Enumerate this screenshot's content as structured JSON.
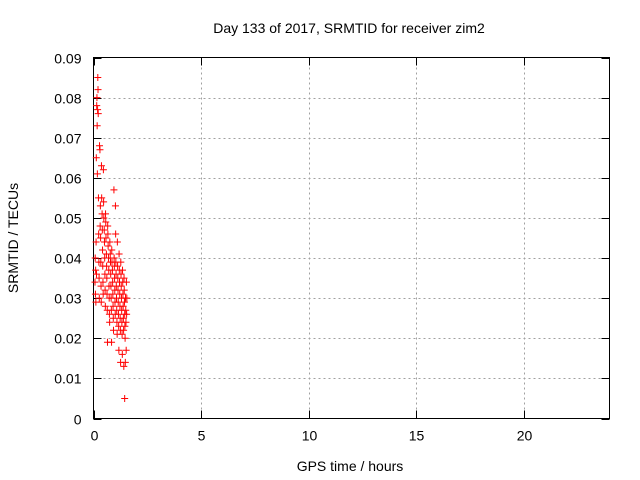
{
  "chart_data": {
    "type": "scatter",
    "title": "Day 133 of 2017, SRMTID for receiver zim2",
    "xlabel": "GPS time / hours",
    "ylabel": "SRMTID / TECUs",
    "xlim": [
      0,
      24
    ],
    "ylim": [
      0,
      0.09
    ],
    "xticks": [
      0,
      5,
      10,
      15,
      20
    ],
    "yticks": [
      0,
      0.01,
      0.02,
      0.03,
      0.04,
      0.05,
      0.06,
      0.07,
      0.08,
      0.09
    ],
    "ytick_labels": [
      "0",
      "0.01",
      "0.02",
      "0.03",
      "0.04",
      "0.05",
      "0.06",
      "0.07",
      "0.08",
      "0.09"
    ],
    "grid": true,
    "marker": "+",
    "color": "#ff0000",
    "series": [
      {
        "values": [
          [
            0.07,
            0.034
          ],
          [
            0.08,
            0.04
          ],
          [
            0.09,
            0.031
          ],
          [
            0.1,
            0.037
          ],
          [
            0.11,
            0.029
          ],
          [
            0.12,
            0.044
          ],
          [
            0.13,
            0.065
          ],
          [
            0.14,
            0.036
          ],
          [
            0.15,
            0.078
          ],
          [
            0.16,
            0.08
          ],
          [
            0.17,
            0.073
          ],
          [
            0.18,
            0.061
          ],
          [
            0.19,
            0.077
          ],
          [
            0.2,
            0.085
          ],
          [
            0.21,
            0.082
          ],
          [
            0.22,
            0.076
          ],
          [
            0.23,
            0.055
          ],
          [
            0.24,
            0.046
          ],
          [
            0.25,
            0.039
          ],
          [
            0.26,
            0.035
          ],
          [
            0.27,
            0.03
          ],
          [
            0.28,
            0.068
          ],
          [
            0.3,
            0.067
          ],
          [
            0.31,
            0.048
          ],
          [
            0.32,
            0.053
          ],
          [
            0.33,
            0.045
          ],
          [
            0.34,
            0.039
          ],
          [
            0.35,
            0.033
          ],
          [
            0.36,
            0.029
          ],
          [
            0.37,
            0.063
          ],
          [
            0.38,
            0.055
          ],
          [
            0.4,
            0.051
          ],
          [
            0.41,
            0.047
          ],
          [
            0.42,
            0.042
          ],
          [
            0.43,
            0.038
          ],
          [
            0.44,
            0.034
          ],
          [
            0.45,
            0.031
          ],
          [
            0.46,
            0.062
          ],
          [
            0.47,
            0.054
          ],
          [
            0.48,
            0.05
          ],
          [
            0.5,
            0.047
          ],
          [
            0.51,
            0.044
          ],
          [
            0.52,
            0.04
          ],
          [
            0.53,
            0.036
          ],
          [
            0.54,
            0.032
          ],
          [
            0.55,
            0.028
          ],
          [
            0.56,
            0.051
          ],
          [
            0.57,
            0.049
          ],
          [
            0.58,
            0.045
          ],
          [
            0.6,
            0.041
          ],
          [
            0.61,
            0.038
          ],
          [
            0.62,
            0.035
          ],
          [
            0.63,
            0.031
          ],
          [
            0.64,
            0.027
          ],
          [
            0.65,
            0.019
          ],
          [
            0.66,
            0.048
          ],
          [
            0.67,
            0.046
          ],
          [
            0.68,
            0.043
          ],
          [
            0.7,
            0.04
          ],
          [
            0.71,
            0.037
          ],
          [
            0.72,
            0.033
          ],
          [
            0.73,
            0.03
          ],
          [
            0.74,
            0.026
          ],
          [
            0.75,
            0.024
          ],
          [
            0.76,
            0.044
          ],
          [
            0.78,
            0.041
          ],
          [
            0.79,
            0.039
          ],
          [
            0.8,
            0.036
          ],
          [
            0.81,
            0.033
          ],
          [
            0.82,
            0.03
          ],
          [
            0.83,
            0.027
          ],
          [
            0.84,
            0.019
          ],
          [
            0.85,
            0.042
          ],
          [
            0.86,
            0.039
          ],
          [
            0.88,
            0.037
          ],
          [
            0.89,
            0.034
          ],
          [
            0.9,
            0.031
          ],
          [
            0.91,
            0.028
          ],
          [
            0.92,
            0.025
          ],
          [
            0.93,
            0.022
          ],
          [
            0.95,
            0.057
          ],
          [
            0.96,
            0.04
          ],
          [
            0.97,
            0.038
          ],
          [
            0.98,
            0.035
          ],
          [
            0.99,
            0.032
          ],
          [
            1.0,
            0.029
          ],
          [
            1.01,
            0.026
          ],
          [
            1.02,
            0.053
          ],
          [
            1.03,
            0.046
          ],
          [
            1.04,
            0.039
          ],
          [
            1.05,
            0.036
          ],
          [
            1.06,
            0.033
          ],
          [
            1.07,
            0.03
          ],
          [
            1.08,
            0.027
          ],
          [
            1.09,
            0.024
          ],
          [
            1.1,
            0.021
          ],
          [
            1.11,
            0.044
          ],
          [
            1.12,
            0.038
          ],
          [
            1.13,
            0.035
          ],
          [
            1.14,
            0.032
          ],
          [
            1.15,
            0.029
          ],
          [
            1.16,
            0.026
          ],
          [
            1.17,
            0.023
          ],
          [
            1.18,
            0.017
          ],
          [
            1.19,
            0.041
          ],
          [
            1.2,
            0.037
          ],
          [
            1.21,
            0.034
          ],
          [
            1.22,
            0.031
          ],
          [
            1.23,
            0.028
          ],
          [
            1.24,
            0.025
          ],
          [
            1.25,
            0.022
          ],
          [
            1.26,
            0.014
          ],
          [
            1.27,
            0.039
          ],
          [
            1.28,
            0.036
          ],
          [
            1.29,
            0.033
          ],
          [
            1.3,
            0.03
          ],
          [
            1.31,
            0.027
          ],
          [
            1.32,
            0.024
          ],
          [
            1.33,
            0.021
          ],
          [
            1.34,
            0.016
          ],
          [
            1.35,
            0.037
          ],
          [
            1.36,
            0.034
          ],
          [
            1.37,
            0.031
          ],
          [
            1.38,
            0.028
          ],
          [
            1.39,
            0.025
          ],
          [
            1.4,
            0.022
          ],
          [
            1.41,
            0.013
          ],
          [
            1.42,
            0.035
          ],
          [
            1.43,
            0.032
          ],
          [
            1.44,
            0.029
          ],
          [
            1.45,
            0.026
          ],
          [
            1.46,
            0.023
          ],
          [
            1.47,
            0.02
          ],
          [
            1.48,
            0.014
          ],
          [
            1.49,
            0.03
          ],
          [
            1.5,
            0.027
          ],
          [
            1.51,
            0.024
          ],
          [
            1.52,
            0.017
          ],
          [
            1.53,
            0.034
          ],
          [
            1.54,
            0.026
          ],
          [
            1.55,
            0.03
          ],
          [
            1.45,
            0.005
          ]
        ]
      }
    ]
  }
}
